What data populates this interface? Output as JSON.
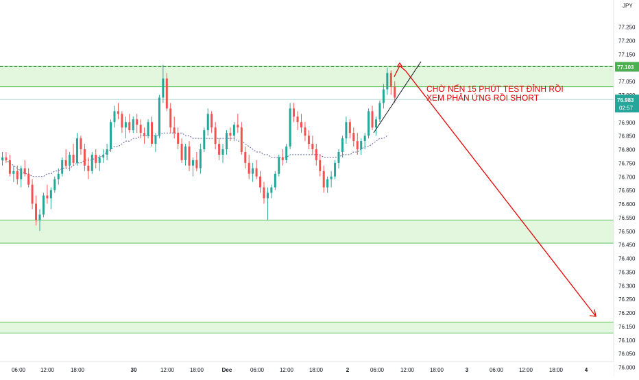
{
  "chart_data": {
    "type": "candlestick",
    "symbol_currency": "JPY",
    "x_tick_labels": [
      "06:00",
      "12:00",
      "18:00",
      "30",
      "12:00",
      "18:00",
      "Dec",
      "06:00",
      "12:00",
      "18:00",
      "2",
      "06:00",
      "12:00",
      "18:00",
      "3",
      "06:00",
      "12:00",
      "18:00",
      "4"
    ],
    "y_tick_labels": [
      "77.250",
      "77.200",
      "77.150",
      "77.050",
      "77.000",
      "76.950",
      "76.900",
      "76.850",
      "76.800",
      "76.750",
      "76.700",
      "76.650",
      "76.600",
      "76.550",
      "76.500",
      "76.450",
      "76.400",
      "76.350",
      "76.300",
      "76.250",
      "76.200",
      "76.150",
      "76.100",
      "76.050",
      "76.000"
    ],
    "ylim": [
      75.985,
      77.275
    ],
    "current_price_label": "76.983",
    "countdown_label": "02:57",
    "resistance_line_label": "77.103",
    "zones": [
      {
        "name": "resistance",
        "low": 77.03,
        "high": 77.105
      },
      {
        "name": "support",
        "low": 76.455,
        "high": 76.54
      },
      {
        "name": "target",
        "low": 76.125,
        "high": 76.165
      }
    ],
    "annotation_lines": [
      "CHỜ NẾN 15 PHÚT TEST ĐỈNH RỒI",
      "XEM PHẢN ỨNG RỒI SHORT"
    ],
    "candles": [
      [
        76.76,
        76.79,
        76.74,
        76.77
      ],
      [
        76.77,
        76.79,
        76.75,
        76.76
      ],
      [
        76.76,
        76.78,
        76.7,
        76.71
      ],
      [
        76.71,
        76.74,
        76.68,
        76.72
      ],
      [
        76.72,
        76.74,
        76.67,
        76.69
      ],
      [
        76.69,
        76.74,
        76.66,
        76.73
      ],
      [
        76.73,
        76.76,
        76.7,
        76.71
      ],
      [
        76.71,
        76.73,
        76.66,
        76.67
      ],
      [
        76.67,
        76.69,
        76.58,
        76.6
      ],
      [
        76.6,
        76.63,
        76.52,
        76.54
      ],
      [
        76.54,
        76.58,
        76.5,
        76.56
      ],
      [
        76.56,
        76.64,
        76.55,
        76.63
      ],
      [
        76.63,
        76.67,
        76.6,
        76.62
      ],
      [
        76.62,
        76.66,
        76.58,
        76.65
      ],
      [
        76.65,
        76.7,
        76.64,
        76.69
      ],
      [
        76.69,
        76.73,
        76.67,
        76.71
      ],
      [
        76.71,
        76.77,
        76.7,
        76.76
      ],
      [
        76.76,
        76.8,
        76.73,
        76.74
      ],
      [
        76.74,
        76.79,
        76.72,
        76.78
      ],
      [
        76.78,
        76.82,
        76.74,
        76.75
      ],
      [
        76.75,
        76.86,
        76.74,
        76.84
      ],
      [
        76.84,
        76.85,
        76.78,
        76.8
      ],
      [
        76.8,
        76.82,
        76.72,
        76.74
      ],
      [
        76.74,
        76.77,
        76.69,
        76.72
      ],
      [
        76.72,
        76.79,
        76.71,
        76.78
      ],
      [
        76.78,
        76.8,
        76.73,
        76.75
      ],
      [
        76.75,
        76.78,
        76.72,
        76.77
      ],
      [
        76.77,
        76.8,
        76.75,
        76.78
      ],
      [
        76.78,
        76.82,
        76.76,
        76.8
      ],
      [
        76.8,
        76.91,
        76.79,
        76.9
      ],
      [
        76.9,
        76.96,
        76.88,
        76.94
      ],
      [
        76.94,
        76.97,
        76.91,
        76.93
      ],
      [
        76.93,
        76.94,
        76.86,
        76.88
      ],
      [
        76.88,
        76.92,
        76.84,
        76.9
      ],
      [
        76.9,
        76.93,
        76.86,
        76.87
      ],
      [
        76.87,
        76.92,
        76.86,
        76.91
      ],
      [
        76.91,
        76.93,
        76.86,
        76.89
      ],
      [
        76.89,
        76.91,
        76.84,
        76.86
      ],
      [
        76.86,
        76.88,
        76.82,
        76.85
      ],
      [
        76.85,
        76.91,
        76.84,
        76.9
      ],
      [
        76.9,
        76.92,
        76.81,
        76.82
      ],
      [
        76.82,
        76.86,
        76.79,
        76.85
      ],
      [
        76.85,
        77.0,
        76.84,
        76.99
      ],
      [
        76.99,
        77.11,
        76.97,
        77.06
      ],
      [
        77.06,
        77.08,
        76.94,
        76.95
      ],
      [
        76.95,
        76.97,
        76.86,
        76.88
      ],
      [
        76.88,
        76.92,
        76.84,
        76.86
      ],
      [
        76.86,
        76.88,
        76.8,
        76.82
      ],
      [
        76.82,
        76.84,
        76.75,
        76.76
      ],
      [
        76.76,
        76.82,
        76.74,
        76.81
      ],
      [
        76.81,
        76.83,
        76.72,
        76.74
      ],
      [
        76.74,
        76.77,
        76.7,
        76.76
      ],
      [
        76.76,
        76.79,
        76.72,
        76.73
      ],
      [
        76.73,
        76.82,
        76.71,
        76.8
      ],
      [
        76.8,
        76.88,
        76.79,
        76.87
      ],
      [
        76.87,
        76.95,
        76.85,
        76.93
      ],
      [
        76.93,
        76.94,
        76.86,
        76.88
      ],
      [
        76.88,
        76.9,
        76.8,
        76.82
      ],
      [
        76.82,
        76.84,
        76.76,
        76.78
      ],
      [
        76.78,
        76.82,
        76.75,
        76.8
      ],
      [
        76.8,
        76.87,
        76.78,
        76.86
      ],
      [
        76.86,
        76.88,
        76.83,
        76.85
      ],
      [
        76.85,
        76.9,
        76.83,
        76.89
      ],
      [
        76.89,
        76.93,
        76.86,
        76.88
      ],
      [
        76.88,
        76.9,
        76.78,
        76.79
      ],
      [
        76.79,
        76.81,
        76.73,
        76.75
      ],
      [
        76.75,
        76.78,
        76.69,
        76.71
      ],
      [
        76.71,
        76.75,
        76.68,
        76.73
      ],
      [
        76.73,
        76.76,
        76.69,
        76.7
      ],
      [
        76.7,
        76.72,
        76.64,
        76.66
      ],
      [
        76.66,
        76.68,
        76.6,
        76.62
      ],
      [
        76.62,
        76.66,
        76.54,
        76.64
      ],
      [
        76.64,
        76.67,
        76.62,
        76.66
      ],
      [
        76.66,
        76.72,
        76.65,
        76.71
      ],
      [
        76.71,
        76.78,
        76.7,
        76.77
      ],
      [
        76.77,
        76.8,
        76.74,
        76.76
      ],
      [
        76.76,
        76.82,
        76.75,
        76.81
      ],
      [
        76.81,
        76.97,
        76.8,
        76.95
      ],
      [
        76.95,
        76.97,
        76.9,
        76.92
      ],
      [
        76.92,
        76.94,
        76.87,
        76.9
      ],
      [
        76.9,
        76.93,
        76.86,
        76.88
      ],
      [
        76.88,
        76.9,
        76.83,
        76.85
      ],
      [
        76.85,
        76.87,
        76.8,
        76.82
      ],
      [
        76.82,
        76.85,
        76.78,
        76.8
      ],
      [
        76.8,
        76.82,
        76.74,
        76.76
      ],
      [
        76.76,
        76.78,
        76.7,
        76.72
      ],
      [
        76.72,
        76.74,
        76.64,
        76.66
      ],
      [
        76.66,
        76.7,
        76.64,
        76.69
      ],
      [
        76.69,
        76.72,
        76.66,
        76.7
      ],
      [
        76.7,
        76.76,
        76.69,
        76.75
      ],
      [
        76.75,
        76.8,
        76.73,
        76.79
      ],
      [
        76.79,
        76.85,
        76.77,
        76.84
      ],
      [
        76.84,
        76.92,
        76.82,
        76.9
      ],
      [
        76.9,
        76.91,
        76.84,
        76.86
      ],
      [
        76.86,
        76.88,
        76.81,
        76.83
      ],
      [
        76.83,
        76.86,
        76.78,
        76.8
      ],
      [
        76.8,
        76.84,
        76.78,
        76.83
      ],
      [
        76.83,
        76.86,
        76.8,
        76.85
      ],
      [
        76.85,
        76.95,
        76.84,
        76.94
      ],
      [
        76.94,
        76.96,
        76.87,
        76.88
      ],
      [
        76.88,
        76.92,
        76.85,
        76.91
      ],
      [
        76.91,
        76.98,
        76.9,
        76.97
      ],
      [
        76.97,
        77.04,
        76.95,
        77.02
      ],
      [
        77.02,
        77.1,
        77.0,
        77.08
      ],
      [
        77.08,
        77.09,
        77.0,
        77.03
      ],
      [
        77.03,
        77.05,
        76.97,
        76.99
      ]
    ],
    "moving_average": [
      76.76,
      76.76,
      76.75,
      76.74,
      76.73,
      76.72,
      76.71,
      76.71,
      76.7,
      76.7,
      76.7,
      76.7,
      76.71,
      76.71,
      76.72,
      76.72,
      76.73,
      76.73,
      76.73,
      76.74,
      76.75,
      76.75,
      76.76,
      76.76,
      76.76,
      76.77,
      76.77,
      76.78,
      76.79,
      76.8,
      76.81,
      76.81,
      76.82,
      76.83,
      76.83,
      76.84,
      76.84,
      76.85,
      76.85,
      76.85,
      76.85,
      76.85,
      76.85,
      76.86,
      76.86,
      76.86,
      76.86,
      76.86,
      76.86,
      76.85,
      76.85,
      76.84,
      76.84,
      76.84,
      76.84,
      76.84,
      76.84,
      76.84,
      76.84,
      76.84,
      76.84,
      76.84,
      76.84,
      76.83,
      76.83,
      76.82,
      76.81,
      76.8,
      76.79,
      76.79,
      76.78,
      76.78,
      76.77,
      76.77,
      76.77,
      76.77,
      76.77,
      76.78,
      76.78,
      76.78,
      76.78,
      76.78,
      76.78,
      76.78,
      76.78,
      76.78,
      76.77,
      76.77,
      76.77,
      76.77,
      76.77,
      76.78,
      76.78,
      76.78,
      76.79,
      76.79,
      76.8,
      76.81,
      76.81,
      76.82,
      76.83,
      76.84,
      76.84,
      76.85
    ]
  },
  "colors": {
    "up": "#26a69a",
    "down": "#ef5350",
    "zone_fill": "#e3f7df",
    "zone_border": "#5cc15a",
    "ma": "#5b5ea6",
    "annotation": "#e60000",
    "resistance_tag": "#4caf50",
    "price_tag": "#26a69a"
  }
}
